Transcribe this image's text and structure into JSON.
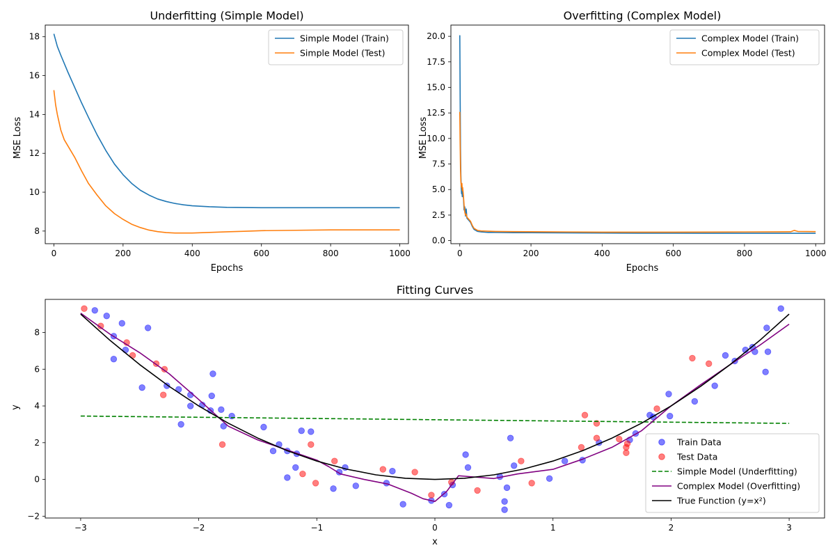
{
  "chart_data": [
    {
      "type": "line",
      "title": "Underfitting (Simple Model)",
      "xlabel": "Epochs",
      "ylabel": "MSE Loss",
      "xlim": [
        -25,
        1025
      ],
      "ylim": [
        7.35,
        18.6
      ],
      "xticks": [
        0,
        200,
        400,
        600,
        800,
        1000
      ],
      "yticks": [
        8,
        10,
        12,
        14,
        16,
        18
      ],
      "legend_position": "top-right",
      "series": [
        {
          "name": "Simple Model (Train)",
          "color": "#1f77b4",
          "x": [
            0,
            10,
            20,
            40,
            60,
            80,
            100,
            125,
            150,
            175,
            200,
            225,
            250,
            275,
            300,
            325,
            350,
            375,
            400,
            450,
            500,
            550,
            600,
            700,
            800,
            900,
            1000
          ],
          "y": [
            18.15,
            17.5,
            17.05,
            16.2,
            15.4,
            14.6,
            13.85,
            12.95,
            12.15,
            11.45,
            10.9,
            10.45,
            10.1,
            9.85,
            9.65,
            9.52,
            9.42,
            9.35,
            9.3,
            9.25,
            9.22,
            9.21,
            9.2,
            9.2,
            9.2,
            9.2,
            9.2
          ]
        },
        {
          "name": "Simple Model (Test)",
          "color": "#ff7f0e",
          "x": [
            0,
            5,
            10,
            20,
            30,
            40,
            60,
            80,
            100,
            125,
            150,
            175,
            200,
            225,
            250,
            275,
            300,
            325,
            350,
            375,
            400,
            450,
            500,
            550,
            600,
            700,
            800,
            900,
            1000
          ],
          "y": [
            15.25,
            14.5,
            14.0,
            13.2,
            12.7,
            12.4,
            11.8,
            11.1,
            10.45,
            9.85,
            9.3,
            8.9,
            8.6,
            8.35,
            8.18,
            8.05,
            7.97,
            7.92,
            7.9,
            7.9,
            7.9,
            7.93,
            7.96,
            7.99,
            8.02,
            8.04,
            8.06,
            8.06,
            8.06
          ]
        }
      ]
    },
    {
      "type": "line",
      "title": "Overfitting (Complex Model)",
      "xlabel": "Epochs",
      "ylabel": "MSE Loss",
      "xlim": [
        -25,
        1025
      ],
      "ylim": [
        -0.3,
        21.1
      ],
      "xticks": [
        0,
        200,
        400,
        600,
        800,
        1000
      ],
      "yticks": [
        0.0,
        2.5,
        5.0,
        7.5,
        10.0,
        12.5,
        15.0,
        17.5,
        20.0
      ],
      "ytick_labels": [
        "0.0",
        "2.5",
        "5.0",
        "7.5",
        "10.0",
        "12.5",
        "15.0",
        "17.5",
        "20.0"
      ],
      "legend_position": "top-right",
      "series": [
        {
          "name": "Complex Model (Train)",
          "color": "#1f77b4",
          "x": [
            0,
            1,
            2,
            3,
            4,
            5,
            6,
            7,
            8,
            10,
            12,
            14,
            16,
            18,
            20,
            25,
            30,
            35,
            40,
            50,
            60,
            80,
            100,
            150,
            200,
            300,
            400,
            500,
            600,
            700,
            800,
            900,
            1000
          ],
          "y": [
            20.1,
            14.0,
            9.0,
            6.5,
            5.2,
            4.6,
            4.9,
            4.3,
            4.8,
            4.4,
            3.0,
            3.3,
            2.4,
            3.1,
            2.2,
            2.0,
            1.8,
            1.4,
            1.1,
            0.9,
            0.85,
            0.8,
            0.8,
            0.78,
            0.78,
            0.76,
            0.74,
            0.73,
            0.73,
            0.72,
            0.72,
            0.72,
            0.72
          ]
        },
        {
          "name": "Complex Model (Test)",
          "color": "#ff7f0e",
          "x": [
            0,
            1,
            2,
            3,
            4,
            5,
            6,
            7,
            8,
            10,
            12,
            14,
            16,
            18,
            20,
            25,
            30,
            35,
            40,
            50,
            60,
            80,
            100,
            150,
            200,
            300,
            400,
            500,
            600,
            700,
            800,
            900,
            930,
            940,
            950,
            1000
          ],
          "y": [
            12.6,
            9.5,
            7.0,
            5.8,
            5.5,
            5.2,
            5.6,
            4.9,
            5.2,
            4.5,
            3.5,
            2.8,
            2.5,
            2.6,
            2.3,
            2.1,
            1.9,
            1.5,
            1.2,
            1.0,
            0.95,
            0.92,
            0.9,
            0.88,
            0.87,
            0.85,
            0.83,
            0.83,
            0.83,
            0.84,
            0.85,
            0.86,
            0.87,
            1.0,
            0.9,
            0.88
          ]
        }
      ]
    },
    {
      "type": "scatter",
      "title": "Fitting Curves",
      "xlabel": "x",
      "ylabel": "y",
      "xlim": [
        -3.3,
        3.3
      ],
      "ylim": [
        -2.1,
        9.8
      ],
      "xticks": [
        -3,
        -2,
        -1,
        0,
        1,
        2,
        3
      ],
      "xtick_labels": [
        "−3",
        "−2",
        "−1",
        "0",
        "1",
        "2",
        "3"
      ],
      "yticks": [
        -2,
        0,
        2,
        4,
        6,
        8
      ],
      "ytick_labels": [
        "−2",
        "0",
        "2",
        "4",
        "6",
        "8"
      ],
      "legend_position": "lower-right",
      "series": [
        {
          "name": "Train Data",
          "kind": "scatter",
          "color": "#0000ff",
          "points": [
            [
              -2.88,
              9.2
            ],
            [
              -2.78,
              8.9
            ],
            [
              -2.65,
              8.5
            ],
            [
              -2.72,
              7.8
            ],
            [
              -2.62,
              7.05
            ],
            [
              -2.72,
              6.55
            ],
            [
              -2.48,
              5.0
            ],
            [
              -2.43,
              8.25
            ],
            [
              -2.27,
              5.1
            ],
            [
              -2.17,
              4.9
            ],
            [
              -2.15,
              3.0
            ],
            [
              -2.07,
              4.6
            ],
            [
              -2.07,
              4.0
            ],
            [
              -1.97,
              4.05
            ],
            [
              -1.9,
              3.75
            ],
            [
              -1.89,
              4.55
            ],
            [
              -1.88,
              5.75
            ],
            [
              -1.81,
              3.8
            ],
            [
              -1.79,
              2.9
            ],
            [
              -1.72,
              3.45
            ],
            [
              -1.45,
              2.85
            ],
            [
              -1.37,
              1.55
            ],
            [
              -1.32,
              1.9
            ],
            [
              -1.25,
              1.55
            ],
            [
              -1.25,
              0.1
            ],
            [
              -1.18,
              0.65
            ],
            [
              -1.17,
              1.4
            ],
            [
              -1.13,
              2.65
            ],
            [
              -1.05,
              2.6
            ],
            [
              -0.86,
              -0.5
            ],
            [
              -0.81,
              0.4
            ],
            [
              -0.76,
              0.65
            ],
            [
              -0.67,
              -0.35
            ],
            [
              -0.41,
              -0.2
            ],
            [
              -0.36,
              0.45
            ],
            [
              -0.27,
              -1.35
            ],
            [
              -0.03,
              -1.15
            ],
            [
              0.08,
              -0.8
            ],
            [
              0.12,
              -1.4
            ],
            [
              0.15,
              -0.3
            ],
            [
              0.26,
              1.35
            ],
            [
              0.28,
              0.65
            ],
            [
              0.55,
              0.15
            ],
            [
              0.59,
              -1.2
            ],
            [
              0.59,
              -1.65
            ],
            [
              0.61,
              -0.45
            ],
            [
              0.64,
              2.25
            ],
            [
              0.67,
              0.75
            ],
            [
              0.97,
              0.05
            ],
            [
              1.1,
              1.0
            ],
            [
              1.25,
              1.05
            ],
            [
              1.39,
              2.0
            ],
            [
              1.65,
              2.15
            ],
            [
              1.7,
              2.5
            ],
            [
              1.82,
              3.5
            ],
            [
              1.85,
              3.4
            ],
            [
              1.98,
              4.65
            ],
            [
              1.99,
              3.45
            ],
            [
              2.2,
              4.25
            ],
            [
              2.37,
              5.1
            ],
            [
              2.46,
              6.75
            ],
            [
              2.54,
              6.45
            ],
            [
              2.63,
              7.05
            ],
            [
              2.69,
              7.2
            ],
            [
              2.71,
              6.95
            ],
            [
              2.8,
              5.85
            ],
            [
              2.81,
              8.25
            ],
            [
              2.82,
              6.95
            ],
            [
              2.93,
              9.3
            ]
          ]
        },
        {
          "name": "Test Data",
          "kind": "scatter",
          "color": "#ff0000",
          "points": [
            [
              -2.97,
              9.3
            ],
            [
              -2.83,
              8.35
            ],
            [
              -2.61,
              7.45
            ],
            [
              -2.56,
              6.75
            ],
            [
              -2.36,
              6.3
            ],
            [
              -2.29,
              6.0
            ],
            [
              -2.3,
              4.6
            ],
            [
              -1.8,
              1.9
            ],
            [
              -1.12,
              0.3
            ],
            [
              -1.05,
              1.9
            ],
            [
              -1.01,
              -0.2
            ],
            [
              -0.85,
              1.0
            ],
            [
              -0.44,
              0.55
            ],
            [
              -0.17,
              0.4
            ],
            [
              -0.03,
              -0.85
            ],
            [
              0.14,
              -0.15
            ],
            [
              0.36,
              -0.6
            ],
            [
              0.73,
              1.0
            ],
            [
              0.82,
              -0.2
            ],
            [
              1.24,
              1.75
            ],
            [
              1.27,
              3.5
            ],
            [
              1.37,
              3.05
            ],
            [
              1.37,
              2.25
            ],
            [
              1.56,
              2.2
            ],
            [
              1.62,
              1.75
            ],
            [
              1.62,
              1.45
            ],
            [
              1.63,
              1.95
            ],
            [
              1.88,
              3.85
            ],
            [
              2.18,
              6.6
            ],
            [
              2.32,
              6.3
            ]
          ]
        },
        {
          "name": "Simple Model (Underfitting)",
          "kind": "line",
          "dash": "dashed",
          "color": "#008000",
          "x": [
            -3,
            3
          ],
          "y": [
            3.45,
            3.05
          ]
        },
        {
          "name": "Complex Model (Overfitting)",
          "kind": "line",
          "color": "#800080",
          "x": [
            -3,
            -2.75,
            -2.5,
            -2.25,
            -2,
            -1.75,
            -1.5,
            -1.25,
            -1,
            -0.9,
            -0.8,
            -0.6,
            -0.4,
            -0.2,
            -0.1,
            0,
            0.1,
            0.2,
            0.3,
            0.5,
            0.7,
            1,
            1.25,
            1.5,
            1.75,
            2,
            2.25,
            2.5,
            2.75,
            3
          ],
          "y": [
            9.05,
            7.9,
            6.9,
            5.75,
            4.35,
            2.9,
            2.15,
            1.6,
            1.05,
            0.7,
            0.3,
            0.0,
            -0.25,
            -0.75,
            -1.05,
            -1.2,
            -0.65,
            0.2,
            0.15,
            0.05,
            0.3,
            0.55,
            1.1,
            1.75,
            2.65,
            4.0,
            5.15,
            6.25,
            7.3,
            8.45
          ]
        },
        {
          "name": "True Function (y=x²)",
          "kind": "function",
          "color": "#000000",
          "x": [
            -3,
            -2.75,
            -2.5,
            -2.25,
            -2,
            -1.75,
            -1.5,
            -1.25,
            -1,
            -0.75,
            -0.5,
            -0.25,
            0,
            0.25,
            0.5,
            0.75,
            1,
            1.25,
            1.5,
            1.75,
            2,
            2.25,
            2.5,
            2.75,
            3
          ],
          "y": [
            9,
            7.5625,
            6.25,
            5.0625,
            4,
            3.0625,
            2.25,
            1.5625,
            1,
            0.5625,
            0.25,
            0.0625,
            0,
            0.0625,
            0.25,
            0.5625,
            1,
            1.5625,
            2.25,
            3.0625,
            4,
            5.0625,
            6.25,
            7.5625,
            9
          ]
        }
      ]
    }
  ]
}
